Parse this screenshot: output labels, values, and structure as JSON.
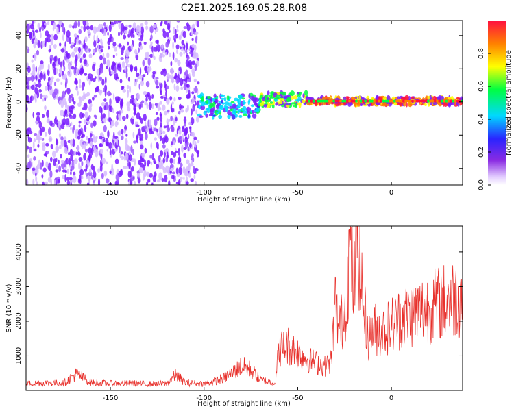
{
  "title": "C2E1.2025.169.05.28.R08",
  "colors": {
    "snr_line": "#e8312c",
    "background_plot": "#ffffff",
    "noise_purple": "#7a1cff",
    "light_purple": "#d6bbff"
  },
  "chart_data": [
    {
      "type": "heatmap",
      "title": "C2E1.2025.169.05.28.R08",
      "xlabel": "Height of straight line (km)",
      "ylabel": "Frequency (Hz)",
      "xlim": [
        -195,
        38
      ],
      "ylim": [
        -50,
        49
      ],
      "xticks": [
        -150,
        -100,
        -50,
        0
      ],
      "yticks": [
        -40,
        -20,
        0,
        20,
        40
      ],
      "colorbar": {
        "label": "Normalized spectral amplitude",
        "range": [
          0.0,
          1.0
        ],
        "ticks": [
          "0.0",
          "0.2",
          "0.4",
          "0.6",
          "0.8"
        ],
        "colormap": "rainbow (purple-blue-cyan-green-yellow-orange-red)",
        "placement": "right"
      },
      "regions": [
        {
          "x_range": [
            -195,
            -103
          ],
          "frequency_band": [
            -50,
            49
          ],
          "amplitude": "0.0-0.2 (broadband noise)"
        },
        {
          "x_range": [
            -103,
            -70
          ],
          "frequency_band": [
            -10,
            5
          ],
          "amplitude": "0.2-0.5"
        },
        {
          "x_range": [
            -70,
            -45
          ],
          "frequency_band": [
            -3,
            6
          ],
          "amplitude": "0.3-0.6"
        },
        {
          "x_range": [
            -45,
            38
          ],
          "frequency_band": [
            -2,
            3
          ],
          "amplitude": "0.5-1.0 (peak near 0 Hz)"
        }
      ]
    },
    {
      "type": "line",
      "xlabel": "Height of straight line (km)",
      "ylabel": "SNR (10 * v/v)",
      "xlim": [
        -195,
        38
      ],
      "ylim": [
        0,
        4750
      ],
      "xticks": [
        -150,
        -100,
        -50,
        0
      ],
      "yticks": [
        1000,
        2000,
        3000,
        4000
      ],
      "series": [
        {
          "x": [
            -195,
            -185,
            -175,
            -168,
            -160,
            -150,
            -140,
            -130,
            -120,
            -115,
            -110,
            -100,
            -95,
            -90,
            -85,
            -80,
            -75,
            -70,
            -65,
            -62,
            -60,
            -55,
            -50,
            -45,
            -40,
            -35,
            -32,
            -30,
            -28,
            -25,
            -22,
            -20,
            -18,
            -15,
            -12,
            -10,
            -5,
            0,
            5,
            10,
            15,
            20,
            25,
            30,
            35,
            38
          ],
          "values": [
            200,
            220,
            210,
            480,
            220,
            200,
            210,
            190,
            200,
            450,
            220,
            200,
            250,
            350,
            500,
            700,
            600,
            300,
            250,
            200,
            1200,
            1300,
            1100,
            900,
            800,
            700,
            900,
            2500,
            1800,
            2200,
            4200,
            3000,
            4700,
            2400,
            1500,
            1800,
            1700,
            1900,
            2100,
            2200,
            2300,
            2400,
            2500,
            2600,
            2700,
            2800
          ]
        }
      ]
    }
  ]
}
